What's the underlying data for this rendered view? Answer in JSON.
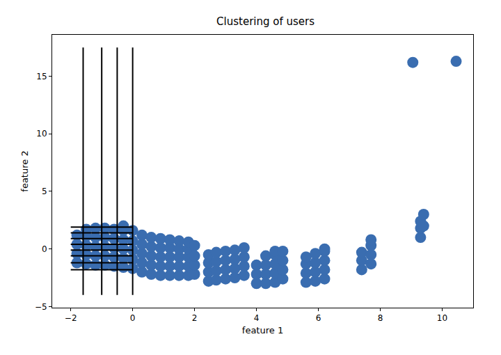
{
  "chart_data": {
    "type": "scatter",
    "title": "Clustering of users",
    "x_label": "feature 1",
    "y_label": "feature 2",
    "xlim": [
      -2.6,
      11.0
    ],
    "ylim": [
      -5.1,
      18.6
    ],
    "xticks": [
      -2,
      0,
      2,
      4,
      6,
      8,
      10
    ],
    "yticks": [
      -5,
      0,
      5,
      10,
      15
    ],
    "grid": false,
    "series": [
      {
        "type": "scatter",
        "marker": "circle",
        "color": "#3a6db0",
        "x": [
          -1.8,
          -1.8,
          -1.8,
          -1.8,
          -1.5,
          -1.5,
          -1.5,
          -1.5,
          -1.5,
          -1.2,
          -1.2,
          -1.2,
          -1.2,
          -1.2,
          -0.9,
          -0.9,
          -0.9,
          -0.9,
          -0.9,
          -0.6,
          -0.6,
          -0.6,
          -0.6,
          -0.6,
          -0.3,
          -0.3,
          -0.3,
          -0.3,
          -0.3,
          -0.3,
          0.0,
          0.0,
          0.0,
          0.0,
          0.0,
          0.3,
          0.3,
          0.3,
          0.3,
          0.3,
          0.6,
          0.6,
          0.6,
          0.6,
          0.6,
          0.9,
          0.9,
          0.9,
          0.9,
          0.9,
          1.2,
          1.2,
          1.2,
          1.2,
          1.2,
          1.5,
          1.5,
          1.5,
          1.5,
          1.5,
          1.8,
          1.8,
          1.8,
          1.8,
          1.8,
          2.0,
          2.0,
          2.0,
          2.0,
          2.45,
          2.45,
          2.45,
          2.45,
          2.7,
          2.7,
          2.7,
          2.7,
          3.0,
          3.0,
          3.0,
          3.0,
          3.3,
          3.3,
          3.3,
          3.3,
          3.6,
          3.6,
          3.6,
          3.6,
          4.0,
          4.0,
          4.0,
          4.3,
          4.3,
          4.3,
          4.3,
          4.6,
          4.6,
          4.6,
          4.6,
          4.6,
          4.85,
          4.85,
          4.85,
          4.85,
          5.6,
          5.6,
          5.6,
          5.6,
          5.9,
          5.9,
          5.9,
          5.9,
          6.2,
          6.2,
          6.2,
          6.2,
          6.2,
          7.4,
          7.4,
          7.4,
          7.7,
          7.7,
          7.7,
          7.7,
          9.3,
          9.3,
          9.3,
          9.4,
          9.4,
          9.05,
          10.45
        ],
        "y": [
          -1.2,
          -0.4,
          0.4,
          1.2,
          -1.3,
          -0.5,
          0.3,
          1.1,
          1.7,
          -1.4,
          -0.6,
          0.2,
          1.0,
          1.8,
          -1.4,
          -0.6,
          0.2,
          1.0,
          1.8,
          -1.5,
          -0.7,
          0.1,
          0.9,
          1.7,
          -1.6,
          -0.8,
          0.0,
          0.8,
          1.6,
          2.0,
          -1.7,
          -0.9,
          -0.1,
          0.7,
          1.6,
          -2.0,
          -1.2,
          -0.4,
          0.4,
          1.2,
          -2.2,
          -1.4,
          -0.6,
          0.2,
          1.0,
          -2.3,
          -1.5,
          -0.7,
          0.1,
          0.9,
          -2.3,
          -1.5,
          -0.7,
          0.1,
          0.8,
          -2.3,
          -1.5,
          -0.7,
          0.0,
          0.7,
          -2.3,
          -1.5,
          -0.7,
          0.0,
          0.6,
          -2.2,
          -1.4,
          -0.6,
          0.3,
          -2.8,
          -2.0,
          -1.2,
          -0.5,
          -2.7,
          -1.9,
          -1.1,
          -0.3,
          -2.6,
          -1.8,
          -1.0,
          -0.2,
          -2.5,
          -1.7,
          -0.9,
          -0.1,
          -2.3,
          -1.5,
          -0.7,
          0.1,
          -3.0,
          -2.2,
          -1.4,
          -3.0,
          -2.2,
          -1.4,
          -0.6,
          -2.9,
          -2.1,
          -1.3,
          -0.5,
          -0.2,
          -2.6,
          -1.8,
          -1.0,
          -0.2,
          -2.9,
          -2.1,
          -1.3,
          -0.7,
          -2.8,
          -2.0,
          -1.2,
          -0.4,
          -2.6,
          -1.8,
          -1.0,
          -0.2,
          0.0,
          -1.8,
          -1.0,
          -0.3,
          -1.3,
          -0.5,
          0.3,
          0.8,
          1.0,
          1.8,
          2.4,
          2.0,
          3.0,
          16.2,
          16.3
        ]
      },
      {
        "type": "line",
        "line_style": "solid",
        "color": "#000000",
        "x": [
          -1.6,
          -1.6,
          null,
          -1.0,
          -1.0,
          null,
          -0.5,
          -0.5,
          null,
          0.0,
          0.0,
          null,
          -2.0,
          0.0,
          null,
          -2.0,
          0.0,
          null,
          -2.0,
          0.0,
          null,
          -2.0,
          0.0,
          null,
          -2.0,
          0.0,
          null,
          -2.0,
          0.0,
          null,
          -2.0,
          0.0,
          null,
          -2.0,
          0.0
        ],
        "y": [
          -4.0,
          17.5,
          null,
          -4.0,
          17.5,
          null,
          -4.0,
          17.5,
          null,
          -4.0,
          17.5,
          null,
          1.9,
          1.9,
          null,
          1.4,
          1.4,
          null,
          0.9,
          0.9,
          null,
          0.4,
          0.4,
          null,
          -0.1,
          -0.1,
          null,
          -0.6,
          -0.6,
          null,
          -1.2,
          -1.2,
          null,
          -1.8,
          -1.8
        ]
      }
    ]
  }
}
